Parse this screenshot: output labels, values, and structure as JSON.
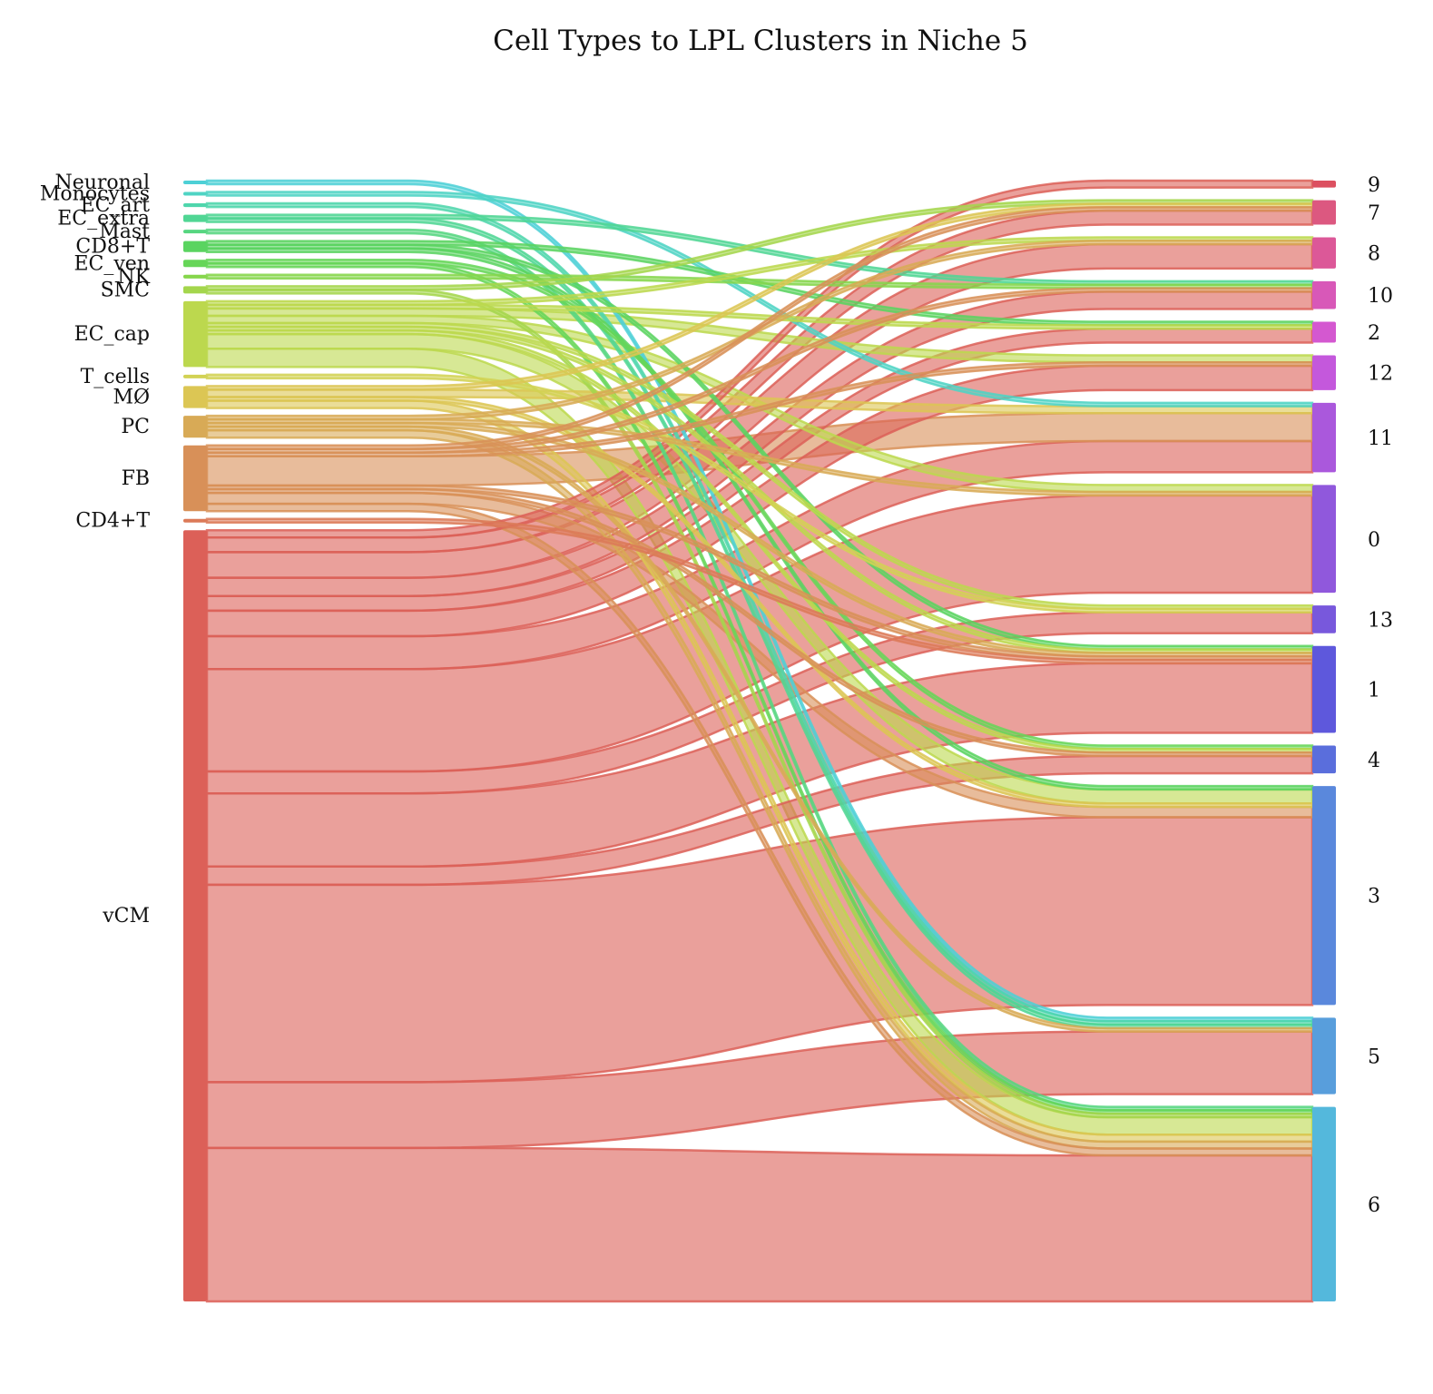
{
  "chart_data": {
    "type": "sankey",
    "title": "Cell Types to LPL Clusters in Niche 5",
    "source_nodes": [
      {
        "name": "Neuronal",
        "color": "#4dd0d6"
      },
      {
        "name": "Monocytes",
        "color": "#4fd4c4"
      },
      {
        "name": "EC_art",
        "color": "#4fd6ac"
      },
      {
        "name": "EC_extra",
        "color": "#50d694"
      },
      {
        "name": "Mast",
        "color": "#56d680"
      },
      {
        "name": "CD8+T",
        "color": "#5ad460"
      },
      {
        "name": "EC_ven",
        "color": "#66d658"
      },
      {
        "name": "NK",
        "color": "#86d64c"
      },
      {
        "name": "SMC",
        "color": "#a4d64c"
      },
      {
        "name": "EC_cap",
        "color": "#bcd84e"
      },
      {
        "name": "T_cells",
        "color": "#d2d254"
      },
      {
        "name": "MØ",
        "color": "#dcc654"
      },
      {
        "name": "PC",
        "color": "#d8aa56"
      },
      {
        "name": "FB",
        "color": "#d89058"
      },
      {
        "name": "CD4+T",
        "color": "#dc7a58"
      },
      {
        "name": "vCM",
        "color": "#dc6058"
      }
    ],
    "target_nodes": [
      {
        "name": "9",
        "color": "#dc5060"
      },
      {
        "name": "7",
        "color": "#dc5880"
      },
      {
        "name": "8",
        "color": "#dc5898"
      },
      {
        "name": "10",
        "color": "#d858b8"
      },
      {
        "name": "2",
        "color": "#d458d0"
      },
      {
        "name": "12",
        "color": "#c458dc"
      },
      {
        "name": "11",
        "color": "#aa58dc"
      },
      {
        "name": "0",
        "color": "#9058dc"
      },
      {
        "name": "13",
        "color": "#7858dc"
      },
      {
        "name": "1",
        "color": "#5e58dc"
      },
      {
        "name": "4",
        "color": "#5a6edc"
      },
      {
        "name": "3",
        "color": "#5a88dc"
      },
      {
        "name": "5",
        "color": "#589edc"
      },
      {
        "name": "6",
        "color": "#54b8dc"
      }
    ],
    "links": [
      {
        "source": "Neuronal",
        "target": "5",
        "value": 1
      },
      {
        "source": "Monocytes",
        "target": "11",
        "value": 1
      },
      {
        "source": "EC_art",
        "target": "5",
        "value": 1
      },
      {
        "source": "EC_extra",
        "target": "10",
        "value": 1
      },
      {
        "source": "EC_extra",
        "target": "5",
        "value": 1
      },
      {
        "source": "Mast",
        "target": "6",
        "value": 1
      },
      {
        "source": "CD8+T",
        "target": "2",
        "value": 1
      },
      {
        "source": "CD8+T",
        "target": "3",
        "value": 1
      },
      {
        "source": "CD8+T",
        "target": "1",
        "value": 1
      },
      {
        "source": "EC_ven",
        "target": "4",
        "value": 1
      },
      {
        "source": "EC_ven",
        "target": "6",
        "value": 1
      },
      {
        "source": "NK",
        "target": "10",
        "value": 1
      },
      {
        "source": "SMC",
        "target": "7",
        "value": 1
      },
      {
        "source": "SMC",
        "target": "6",
        "value": 1
      },
      {
        "source": "EC_cap",
        "target": "8",
        "value": 1
      },
      {
        "source": "EC_cap",
        "target": "2",
        "value": 1
      },
      {
        "source": "EC_cap",
        "target": "12",
        "value": 2
      },
      {
        "source": "EC_cap",
        "target": "0",
        "value": 2
      },
      {
        "source": "EC_cap",
        "target": "13",
        "value": 1
      },
      {
        "source": "EC_cap",
        "target": "1",
        "value": 1
      },
      {
        "source": "EC_cap",
        "target": "4",
        "value": 1
      },
      {
        "source": "EC_cap",
        "target": "3",
        "value": 4
      },
      {
        "source": "EC_cap",
        "target": "6",
        "value": 5
      },
      {
        "source": "T_cells",
        "target": "13",
        "value": 1
      },
      {
        "source": "MØ",
        "target": "7",
        "value": 1
      },
      {
        "source": "MØ",
        "target": "11",
        "value": 2
      },
      {
        "source": "MØ",
        "target": "3",
        "value": 1
      },
      {
        "source": "MØ",
        "target": "6",
        "value": 2
      },
      {
        "source": "PC",
        "target": "8",
        "value": 1
      },
      {
        "source": "PC",
        "target": "0",
        "value": 1
      },
      {
        "source": "PC",
        "target": "1",
        "value": 1
      },
      {
        "source": "PC",
        "target": "5",
        "value": 1
      },
      {
        "source": "PC",
        "target": "6",
        "value": 2
      },
      {
        "source": "FB",
        "target": "7",
        "value": 1
      },
      {
        "source": "FB",
        "target": "10",
        "value": 1
      },
      {
        "source": "FB",
        "target": "11",
        "value": 8
      },
      {
        "source": "FB",
        "target": "12",
        "value": 1
      },
      {
        "source": "FB",
        "target": "1",
        "value": 1
      },
      {
        "source": "FB",
        "target": "3",
        "value": 3
      },
      {
        "source": "FB",
        "target": "4",
        "value": 1
      },
      {
        "source": "FB",
        "target": "6",
        "value": 2
      },
      {
        "source": "CD4+T",
        "target": "1",
        "value": 1
      },
      {
        "source": "vCM",
        "target": "9",
        "value": 2
      },
      {
        "source": "vCM",
        "target": "7",
        "value": 4
      },
      {
        "source": "vCM",
        "target": "8",
        "value": 7
      },
      {
        "source": "vCM",
        "target": "10",
        "value": 5
      },
      {
        "source": "vCM",
        "target": "2",
        "value": 4
      },
      {
        "source": "vCM",
        "target": "12",
        "value": 7
      },
      {
        "source": "vCM",
        "target": "11",
        "value": 9
      },
      {
        "source": "vCM",
        "target": "0",
        "value": 28
      },
      {
        "source": "vCM",
        "target": "13",
        "value": 6
      },
      {
        "source": "vCM",
        "target": "1",
        "value": 20
      },
      {
        "source": "vCM",
        "target": "4",
        "value": 5
      },
      {
        "source": "vCM",
        "target": "3",
        "value": 54
      },
      {
        "source": "vCM",
        "target": "5",
        "value": 18
      },
      {
        "source": "vCM",
        "target": "6",
        "value": 42
      }
    ]
  }
}
